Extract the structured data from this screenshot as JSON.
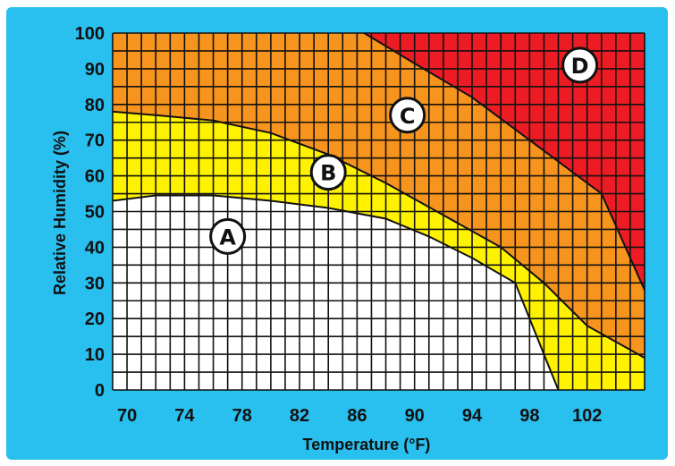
{
  "chart_data": {
    "type": "area",
    "title": "",
    "xlabel": "Temperature (°F)",
    "ylabel": "Relative Humidity (%)",
    "xlim": [
      69,
      106
    ],
    "ylim": [
      0,
      100
    ],
    "grid": true,
    "x_ticks": [
      70,
      74,
      78,
      82,
      86,
      90,
      94,
      98,
      102
    ],
    "y_ticks": [
      0,
      10,
      20,
      30,
      40,
      50,
      60,
      70,
      80,
      90,
      100
    ],
    "zones": [
      {
        "label": "A",
        "color": "#ffffff"
      },
      {
        "label": "B",
        "color": "#fff200"
      },
      {
        "label": "C",
        "color": "#f7941d"
      },
      {
        "label": "D",
        "color": "#ed1c24"
      }
    ],
    "boundaries": {
      "A_B": [
        [
          69,
          53
        ],
        [
          72,
          54.5
        ],
        [
          76,
          54.5
        ],
        [
          80,
          53
        ],
        [
          84,
          51
        ],
        [
          88,
          48
        ],
        [
          91,
          43
        ],
        [
          94,
          37
        ],
        [
          97,
          30
        ],
        [
          99,
          10
        ],
        [
          100,
          0
        ]
      ],
      "B_C": [
        [
          69,
          78
        ],
        [
          72,
          77
        ],
        [
          76,
          75.5
        ],
        [
          80,
          72
        ],
        [
          84,
          66
        ],
        [
          88,
          58
        ],
        [
          92,
          49
        ],
        [
          96,
          40
        ],
        [
          99,
          30
        ],
        [
          102,
          18
        ],
        [
          106,
          9
        ]
      ],
      "C_D": [
        [
          86.5,
          100
        ],
        [
          90,
          91.5
        ],
        [
          94,
          82
        ],
        [
          98,
          70
        ],
        [
          102,
          58
        ],
        [
          103,
          55
        ],
        [
          106,
          28
        ]
      ]
    },
    "zone_label_positions": {
      "A": [
        77,
        43
      ],
      "B": [
        84,
        61
      ],
      "C": [
        89.5,
        77
      ],
      "D": [
        101.5,
        91
      ]
    }
  },
  "colors": {
    "background": "#29c0ef",
    "grid": "#111111",
    "text": "#111111"
  }
}
